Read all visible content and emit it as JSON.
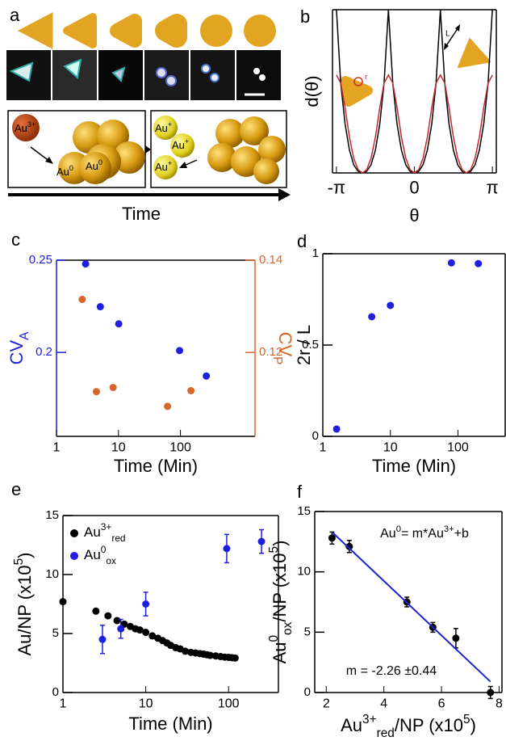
{
  "figure_a": {
    "label": "a",
    "axis_label": "Time",
    "ions": [
      [
        {
          "text": "Au"
        },
        {
          "sup": "3+"
        }
      ],
      [
        {
          "text": "Au"
        },
        {
          "sup": "0"
        }
      ],
      [
        {
          "text": "Au"
        },
        {
          "sup": "0"
        }
      ],
      [
        {
          "text": "Au"
        },
        {
          "sup": "+"
        }
      ],
      [
        {
          "text": "Au"
        },
        {
          "sup": "+"
        }
      ],
      [
        {
          "text": "Au"
        },
        {
          "sup": "+"
        }
      ]
    ]
  },
  "chart_data": [
    {
      "type": "line",
      "label": "b",
      "ylabel": "d(θ)",
      "xlabel": "θ",
      "inset_labels": [
        "L",
        "r"
      ],
      "xlim": [
        -3.3,
        3.3
      ],
      "ylim": [
        0,
        1
      ],
      "xticks": [
        {
          "value": -3.1416,
          "label": "-π"
        },
        0,
        {
          "value": 3.1416,
          "label": "π"
        }
      ],
      "x": [
        -3.1416,
        -2.9671,
        -2.7925,
        -2.618,
        -2.4435,
        -2.2689,
        -2.0944,
        -1.9199,
        -1.7453,
        -1.5708,
        -1.3963,
        -1.2217,
        -1.0472,
        -0.8727,
        -0.6981,
        -0.5236,
        -0.3491,
        -0.1745,
        0,
        0.1745,
        0.3491,
        0.5236,
        0.6981,
        0.8727,
        1.0472,
        1.2217,
        1.3963,
        1.5708,
        1.7453,
        1.9199,
        2.0944,
        2.2689,
        2.4435,
        2.618,
        2.7925,
        2.9671,
        3.1416
      ],
      "series": [
        {
          "color": "#000000",
          "values": [
            1,
            0.55,
            0.3,
            0.14,
            0.05,
            0.01,
            0,
            0.01,
            0.05,
            0.14,
            0.3,
            0.55,
            1,
            0.55,
            0.3,
            0.14,
            0.05,
            0.01,
            0,
            0.01,
            0.05,
            0.14,
            0.3,
            0.55,
            1,
            0.55,
            0.3,
            0.14,
            0.05,
            0.01,
            0,
            0.01,
            0.05,
            0.14,
            0.3,
            0.55,
            1
          ]
        },
        {
          "color": "#c0282d",
          "values": [
            0.6,
            0.55,
            0.4,
            0.22,
            0.09,
            0.02,
            0,
            0.02,
            0.09,
            0.22,
            0.4,
            0.55,
            0.6,
            0.55,
            0.4,
            0.22,
            0.09,
            0.02,
            0,
            0.02,
            0.09,
            0.22,
            0.4,
            0.55,
            0.6,
            0.55,
            0.4,
            0.22,
            0.09,
            0.02,
            0,
            0.02,
            0.09,
            0.22,
            0.4,
            0.55,
            0.6
          ]
        }
      ]
    },
    {
      "type": "scatter",
      "label": "c",
      "log_x": true,
      "xlim": [
        1,
        1600
      ],
      "xticks": [
        1,
        10,
        100
      ],
      "ylim": [
        0.1545,
        0.25
      ],
      "yticks": [
        0.2,
        0.25
      ],
      "y2lim": [
        0.1018,
        0.14
      ],
      "y2ticks": [
        0.12,
        0.14
      ],
      "xlabel": "Time (Min)",
      "ylabel": [
        {
          "text": "CV"
        },
        {
          "sub": "A"
        }
      ],
      "y2label": [
        {
          "text": "CV"
        },
        {
          "sub": "P"
        }
      ],
      "series": [
        {
          "color": "#1f1fe0",
          "x": [
            2.95,
            5.1,
            10.1,
            97,
            262
          ],
          "values": [
            0.248,
            0.2248,
            0.2155,
            0.201,
            0.1872
          ]
        },
        {
          "color": "#d8662a",
          "axis": "y2",
          "x": [
            2.6,
            4.4,
            8.2,
            62,
            148
          ],
          "values": [
            0.1315,
            0.1115,
            0.1124,
            0.1083,
            0.1117
          ]
        }
      ]
    },
    {
      "type": "scatter",
      "label": "d",
      "log_x": true,
      "xlim": [
        1,
        500
      ],
      "xticks": [
        1,
        10,
        100
      ],
      "ylim": [
        0,
        1
      ],
      "yticks": [
        0,
        0.5,
        1
      ],
      "xlabel": "Time (Min)",
      "ylabel": "2r / L",
      "series": [
        {
          "color": "#1f1fe0",
          "x": [
            1.6,
            5.3,
            10,
            80,
            200
          ],
          "values": [
            0.04,
            0.655,
            0.717,
            0.95,
            0.946
          ]
        }
      ]
    },
    {
      "type": "scatter",
      "label": "e",
      "log_x": true,
      "xlim": [
        1,
        400
      ],
      "xticks": [
        1,
        10,
        100
      ],
      "ylim": [
        0,
        15
      ],
      "yticks": [
        0,
        5,
        10,
        15
      ],
      "xlabel": "Time (Min)",
      "ylabel": [
        {
          "text": "Au/NP (x10"
        },
        {
          "sup": "5"
        },
        {
          "text": ")"
        }
      ],
      "legend": "upper left",
      "series": [
        {
          "name": [
            {
              "text": "Au"
            },
            {
              "sup": "3+"
            },
            {
              "sub": "red"
            }
          ],
          "color": "#000000",
          "x": [
            1,
            2.5,
            3.5,
            4.5,
            5.5,
            6.5,
            7.5,
            8.5,
            10,
            12,
            14,
            16,
            18,
            20,
            23,
            26,
            30,
            35,
            40,
            45,
            50,
            55,
            60,
            70,
            80,
            90,
            100,
            110,
            120
          ],
          "values": [
            7.7,
            6.9,
            6.5,
            6.1,
            5.8,
            5.6,
            5.4,
            5.3,
            5.1,
            4.8,
            4.6,
            4.4,
            4.2,
            4.0,
            3.8,
            3.7,
            3.5,
            3.4,
            3.35,
            3.3,
            3.25,
            3.2,
            3.15,
            3.1,
            3.05,
            3.0,
            2.98,
            2.95,
            2.92
          ]
        },
        {
          "name": [
            {
              "text": "Au"
            },
            {
              "sup": "0"
            },
            {
              "sub": "ox"
            }
          ],
          "color": "#1f1fe0",
          "x": [
            3,
            5,
            10,
            95,
            250
          ],
          "values": [
            4.5,
            5.4,
            7.5,
            12.2,
            12.8
          ],
          "errors": [
            1.2,
            0.8,
            1.0,
            1.2,
            1.0
          ]
        }
      ]
    },
    {
      "type": "scatter",
      "label": "f",
      "xlim": [
        1.6,
        8.1
      ],
      "xticks": [
        2,
        4,
        6,
        8
      ],
      "ylim": [
        0,
        15
      ],
      "yticks": [
        0,
        5,
        10,
        15
      ],
      "xlabel": [
        {
          "text": "Au"
        },
        {
          "sup": "3+"
        },
        {
          "sub": "red"
        },
        {
          "text": "/NP (x10"
        },
        {
          "sup": "5"
        },
        {
          "text": ")"
        }
      ],
      "ylabel": [
        {
          "text": "Au"
        },
        {
          "sup": "0"
        },
        {
          "sub": "ox"
        },
        {
          "text": "/NP (x10"
        },
        {
          "sup": "5"
        },
        {
          "text": ")"
        }
      ],
      "series": [
        {
          "color": "#000000",
          "x": [
            2.2,
            2.8,
            4.8,
            5.7,
            6.5,
            7.7
          ],
          "values": [
            12.8,
            12.1,
            7.5,
            5.4,
            4.5,
            0
          ],
          "errors": [
            0.5,
            0.5,
            0.4,
            0.4,
            0.8,
            0.5
          ]
        }
      ],
      "fit": {
        "color": "#2020d0",
        "x": [
          2.2,
          7.7
        ],
        "values": [
          13.3,
          0.9
        ]
      },
      "annotations": [
        [
          {
            "text": "Au"
          },
          {
            "sup": "0"
          },
          {
            "text": "= m*Au"
          },
          {
            "sup": "3+"
          },
          {
            "text": "+b"
          }
        ],
        "m = -2.26 ±0.44"
      ]
    }
  ]
}
